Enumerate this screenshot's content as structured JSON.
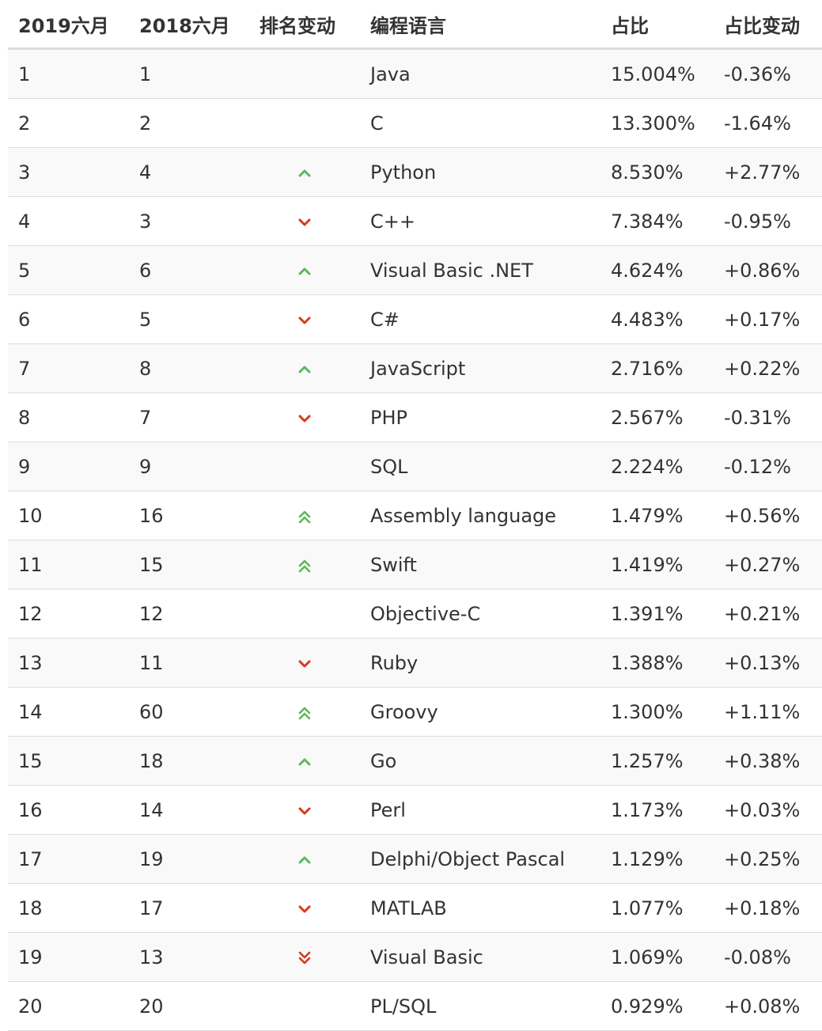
{
  "table": {
    "headers": {
      "rank_2019": "2019六月",
      "rank_2018": "2018六月",
      "change": "排名变动",
      "language": "编程语言",
      "share": "占比",
      "share_change": "占比变动"
    },
    "colors": {
      "up": "#5cb85c",
      "down": "#d9381e",
      "header_border": "#dddddd",
      "stripe": "#f9f9f9"
    },
    "rows": [
      {
        "rank_2019": "1",
        "rank_2018": "1",
        "change_icon": "none",
        "language": "Java",
        "share": "15.004%",
        "share_change": "-0.36%"
      },
      {
        "rank_2019": "2",
        "rank_2018": "2",
        "change_icon": "none",
        "language": "C",
        "share": "13.300%",
        "share_change": "-1.64%"
      },
      {
        "rank_2019": "3",
        "rank_2018": "4",
        "change_icon": "up",
        "language": "Python",
        "share": "8.530%",
        "share_change": "+2.77%"
      },
      {
        "rank_2019": "4",
        "rank_2018": "3",
        "change_icon": "down",
        "language": "C++",
        "share": "7.384%",
        "share_change": "-0.95%"
      },
      {
        "rank_2019": "5",
        "rank_2018": "6",
        "change_icon": "up",
        "language": "Visual Basic .NET",
        "share": "4.624%",
        "share_change": "+0.86%"
      },
      {
        "rank_2019": "6",
        "rank_2018": "5",
        "change_icon": "down",
        "language": "C#",
        "share": "4.483%",
        "share_change": "+0.17%"
      },
      {
        "rank_2019": "7",
        "rank_2018": "8",
        "change_icon": "up",
        "language": "JavaScript",
        "share": "2.716%",
        "share_change": "+0.22%"
      },
      {
        "rank_2019": "8",
        "rank_2018": "7",
        "change_icon": "down",
        "language": "PHP",
        "share": "2.567%",
        "share_change": "-0.31%"
      },
      {
        "rank_2019": "9",
        "rank_2018": "9",
        "change_icon": "none",
        "language": "SQL",
        "share": "2.224%",
        "share_change": "-0.12%"
      },
      {
        "rank_2019": "10",
        "rank_2018": "16",
        "change_icon": "double-up",
        "language": "Assembly language",
        "share": "1.479%",
        "share_change": "+0.56%"
      },
      {
        "rank_2019": "11",
        "rank_2018": "15",
        "change_icon": "double-up",
        "language": "Swift",
        "share": "1.419%",
        "share_change": "+0.27%"
      },
      {
        "rank_2019": "12",
        "rank_2018": "12",
        "change_icon": "none",
        "language": "Objective-C",
        "share": "1.391%",
        "share_change": "+0.21%"
      },
      {
        "rank_2019": "13",
        "rank_2018": "11",
        "change_icon": "down",
        "language": "Ruby",
        "share": "1.388%",
        "share_change": "+0.13%"
      },
      {
        "rank_2019": "14",
        "rank_2018": "60",
        "change_icon": "double-up",
        "language": "Groovy",
        "share": "1.300%",
        "share_change": "+1.11%"
      },
      {
        "rank_2019": "15",
        "rank_2018": "18",
        "change_icon": "up",
        "language": "Go",
        "share": "1.257%",
        "share_change": "+0.38%"
      },
      {
        "rank_2019": "16",
        "rank_2018": "14",
        "change_icon": "down",
        "language": "Perl",
        "share": "1.173%",
        "share_change": "+0.03%"
      },
      {
        "rank_2019": "17",
        "rank_2018": "19",
        "change_icon": "up",
        "language": "Delphi/Object Pascal",
        "share": "1.129%",
        "share_change": "+0.25%"
      },
      {
        "rank_2019": "18",
        "rank_2018": "17",
        "change_icon": "down",
        "language": "MATLAB",
        "share": "1.077%",
        "share_change": "+0.18%"
      },
      {
        "rank_2019": "19",
        "rank_2018": "13",
        "change_icon": "double-down",
        "language": "Visual Basic",
        "share": "1.069%",
        "share_change": "-0.08%"
      },
      {
        "rank_2019": "20",
        "rank_2018": "20",
        "change_icon": "none",
        "language": "PL/SQL",
        "share": "0.929%",
        "share_change": "+0.08%"
      }
    ]
  }
}
